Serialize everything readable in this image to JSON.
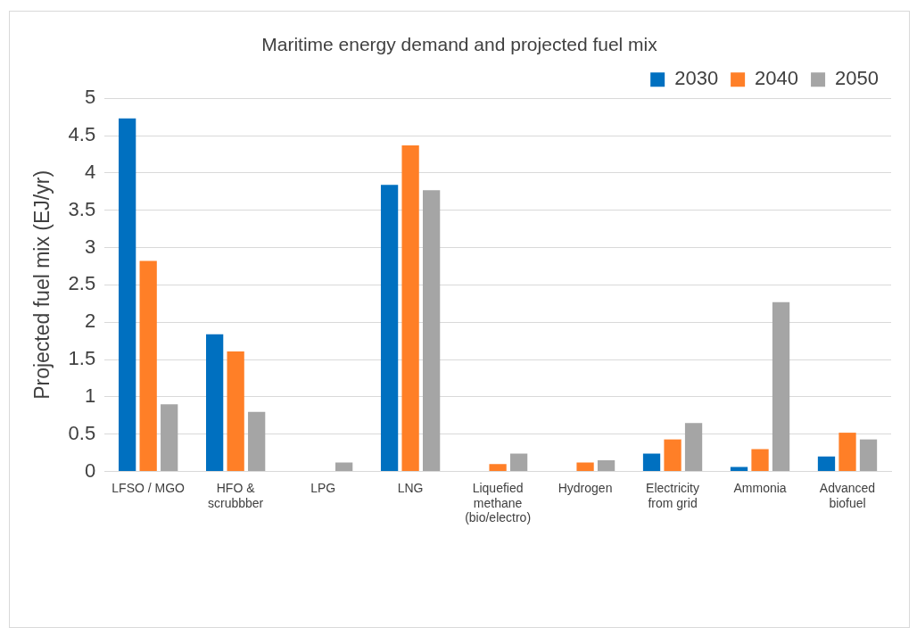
{
  "chart_data": {
    "type": "bar",
    "title": "Maritime energy demand and projected fuel mix",
    "ylabel": "Projected fuel mix (EJ/yr)",
    "categories": [
      "LFSO / MGO",
      "HFO & scrubbber",
      "LPG",
      "LNG",
      "Liquefied methane (bio/electro)",
      "Hydrogen",
      "Electricity from grid",
      "Ammonia",
      "Advanced biofuel"
    ],
    "series": [
      {
        "name": "2030",
        "color": "#0070c0",
        "values": [
          4.73,
          1.84,
          0,
          3.84,
          0,
          0,
          0.24,
          0.06,
          0.2
        ]
      },
      {
        "name": "2040",
        "color": "#ff7f27",
        "values": [
          2.82,
          1.61,
          0,
          4.37,
          0.1,
          0.12,
          0.43,
          0.3,
          0.52
        ]
      },
      {
        "name": "2050",
        "color": "#a5a5a5",
        "values": [
          0.9,
          0.8,
          0.12,
          3.77,
          0.24,
          0.15,
          0.65,
          2.27,
          0.43
        ]
      }
    ],
    "ylim": [
      0,
      5
    ],
    "yticks": [
      0,
      0.5,
      1,
      1.5,
      2,
      2.5,
      3,
      3.5,
      4,
      4.5,
      5
    ],
    "grid": "y",
    "legend": "top right"
  }
}
